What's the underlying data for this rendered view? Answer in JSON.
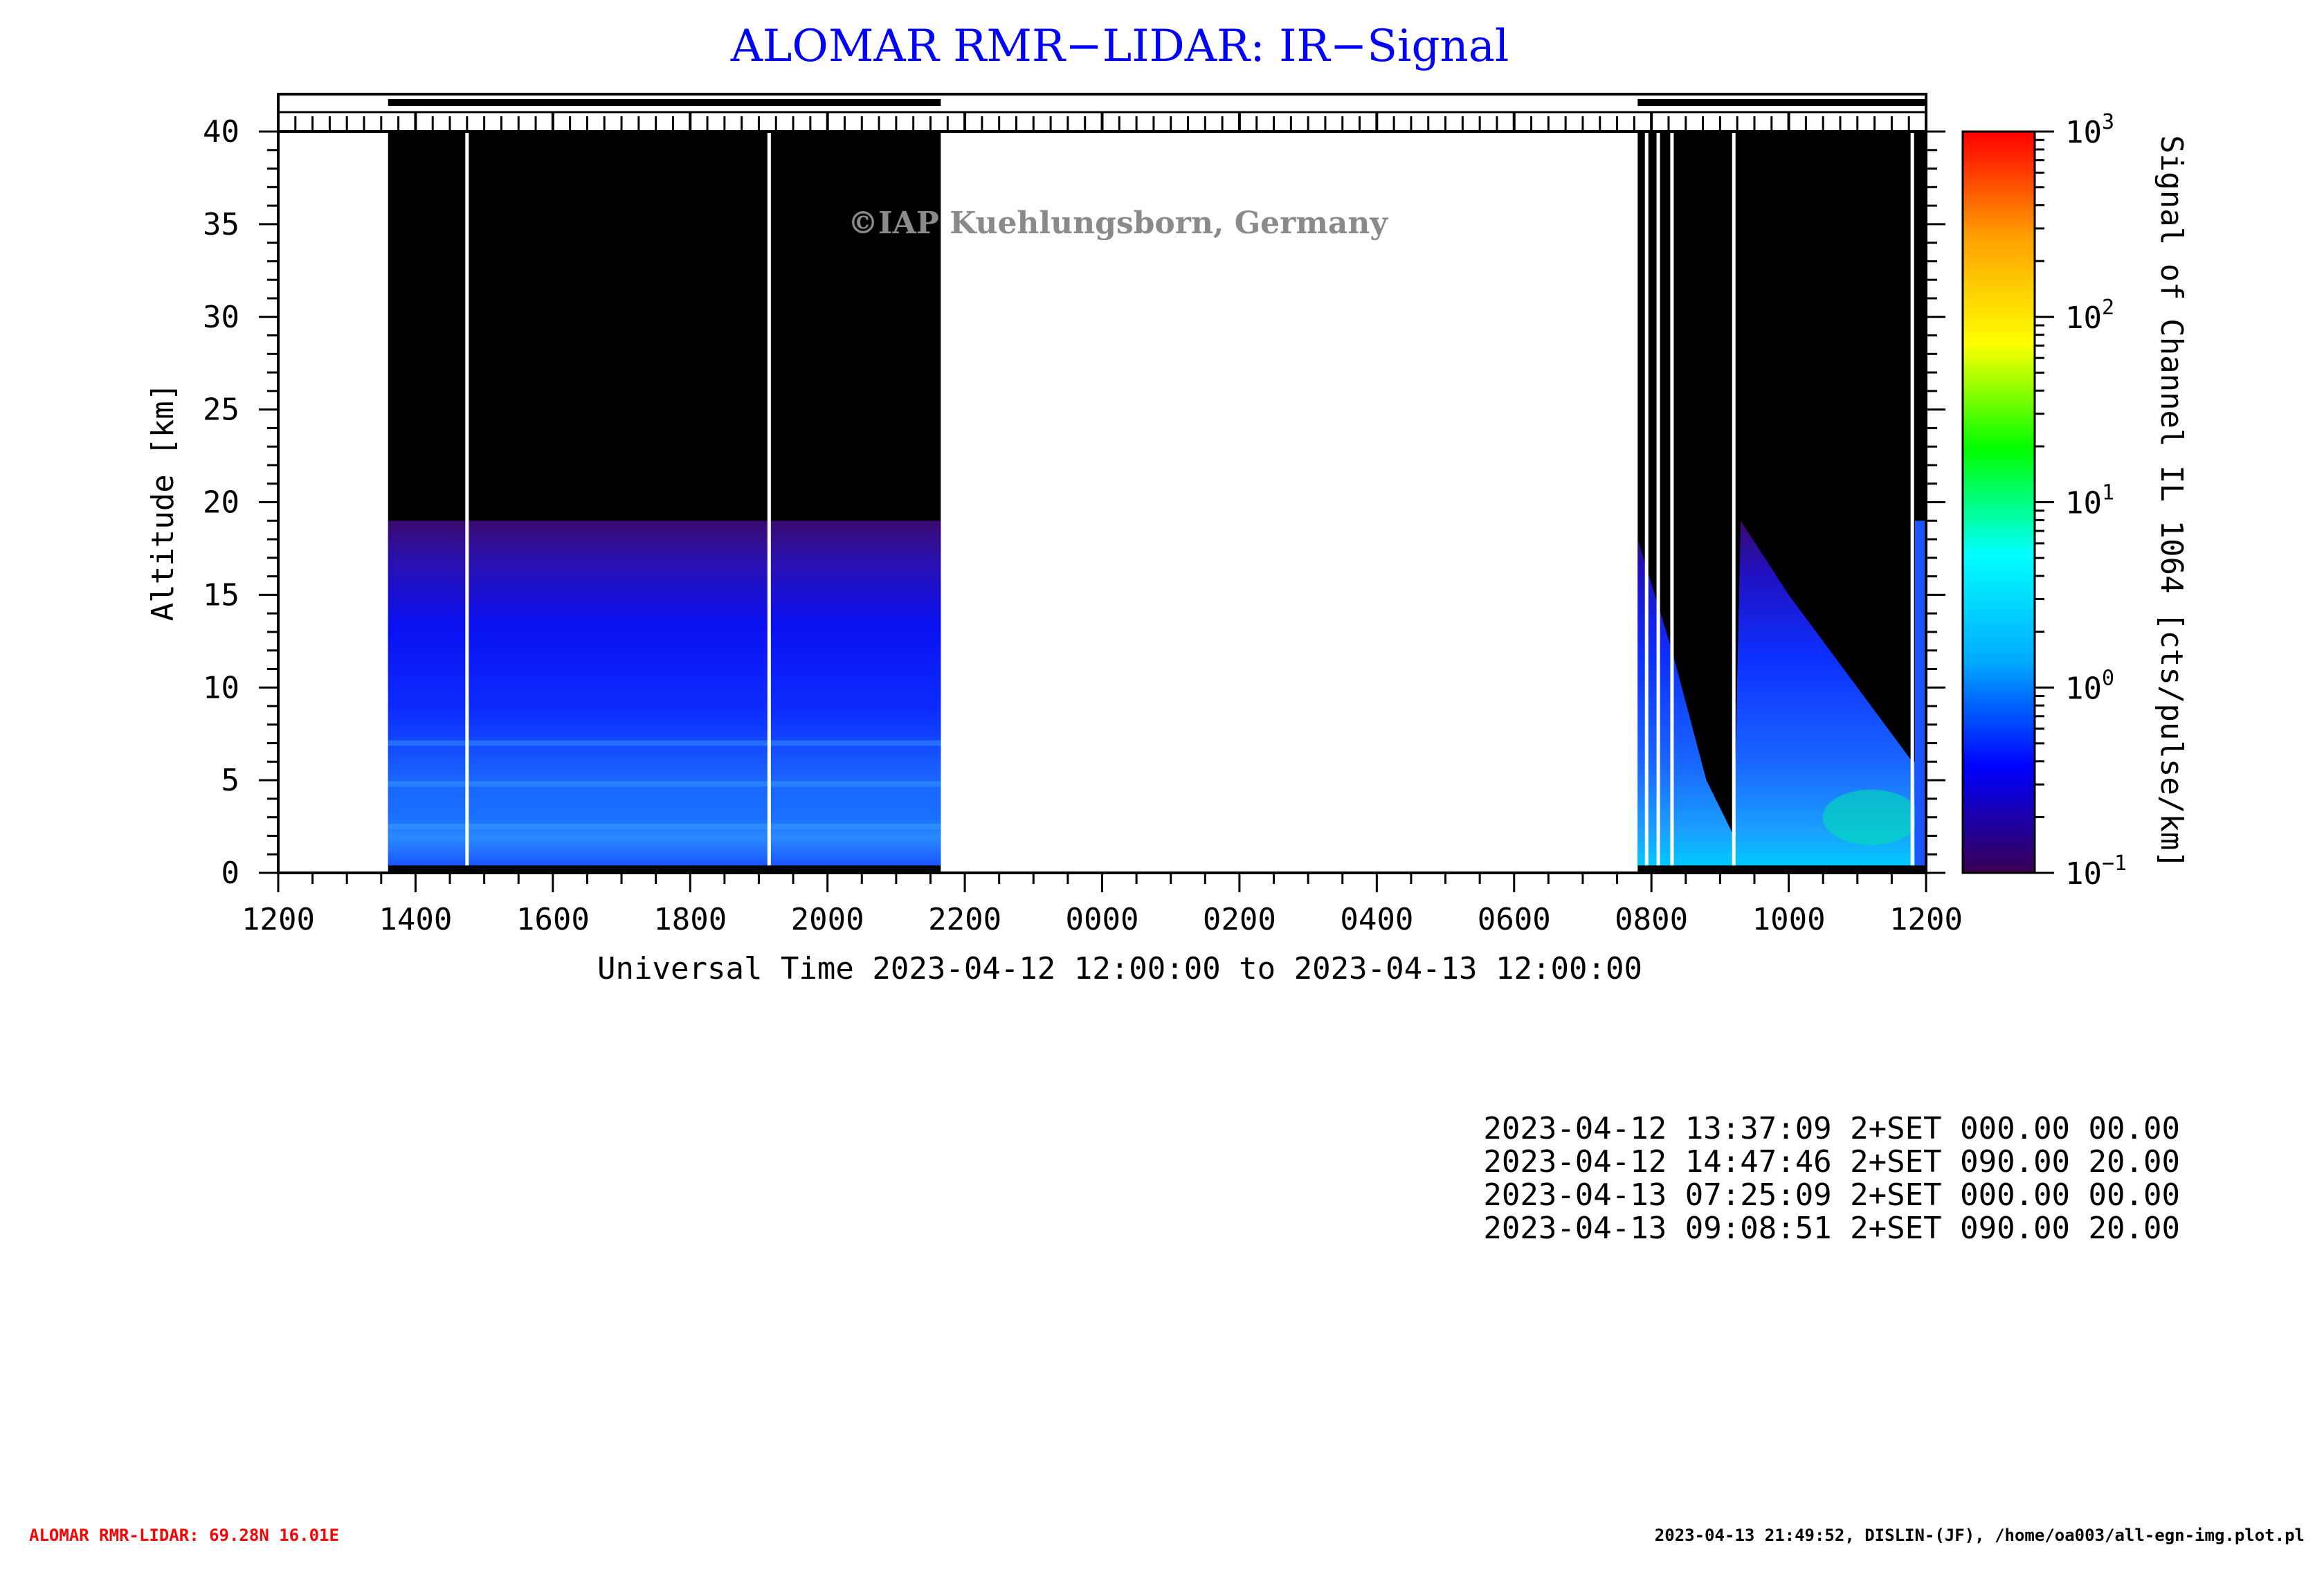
{
  "chart_data": {
    "type": "heatmap",
    "title": "ALOMAR RMR−LIDAR: IR−Signal",
    "watermark": "©IAP Kuehlungsborn, Germany",
    "xlabel": "Universal Time 2023-04-12 12:00:00 to 2023-04-13 12:00:00",
    "ylabel": "Altitude [km]",
    "colorbar_label": "Signal of Channel IL 1064 [cts/pulse/km]",
    "x_range_hours": [
      0,
      24
    ],
    "ylim": [
      0,
      40
    ],
    "x_tick_labels": [
      "1200",
      "1400",
      "1600",
      "1800",
      "2000",
      "2200",
      "0000",
      "0200",
      "0400",
      "0600",
      "0800",
      "1000",
      "1200"
    ],
    "y_ticks": [
      0,
      5,
      10,
      15,
      20,
      25,
      30,
      35,
      40
    ],
    "colorbar_scale": "log",
    "colorbar_range": [
      0.1,
      1000
    ],
    "colorbar_tick_base": "10",
    "colorbar_tick_exponents": [
      "−1",
      "0",
      "1",
      "2",
      "3"
    ],
    "colorbar_colors": [
      "#3a0050",
      "#0000ff",
      "#00aaff",
      "#00ffff",
      "#00ff00",
      "#ffff00",
      "#ffa000",
      "#ff0000"
    ],
    "no_signal_color": "#000000",
    "measurement_periods_hours": [
      [
        1.6,
        9.65
      ],
      [
        19.8,
        24.0
      ]
    ],
    "data_gaps_hours": [
      2.75,
      7.15,
      19.93,
      20.1,
      20.3,
      21.2,
      23.8
    ],
    "signal_top_km_period1": 19,
    "signal_top_km_period2": [
      [
        19.8,
        18
      ],
      [
        20.3,
        12
      ],
      [
        20.8,
        5
      ],
      [
        21.2,
        2
      ],
      [
        21.3,
        19
      ],
      [
        22.0,
        15
      ],
      [
        23.0,
        10
      ],
      [
        23.8,
        6
      ]
    ],
    "runs": [
      "2023-04-12 13:37:09 2+SET 000.00 00.00",
      "2023-04-12 14:47:46 2+SET 090.00 20.00",
      "2023-04-13 07:25:09 2+SET 000.00 00.00",
      "2023-04-13 09:08:51 2+SET 090.00 20.00"
    ]
  },
  "footer": {
    "left": "ALOMAR RMR-LIDAR: 69.28N 16.01E",
    "right": "2023-04-13 21:49:52, DISLIN-(JF), /home/oa003/all-egn-img.plot.pl"
  },
  "colors": {
    "title": "#0000ff",
    "footer_left": "#ff0000",
    "watermark": "#8a8a8a"
  }
}
